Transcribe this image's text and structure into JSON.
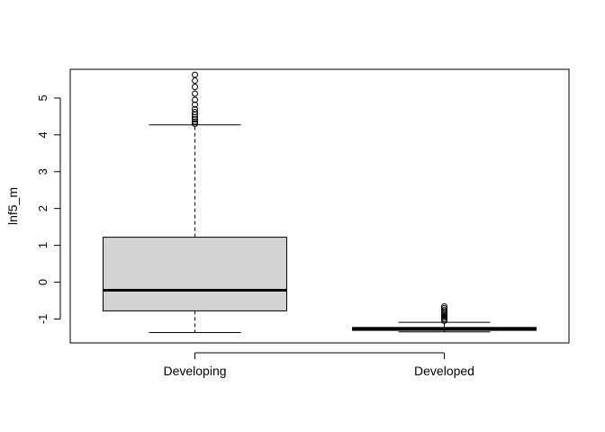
{
  "chart_data": {
    "type": "boxplot",
    "title": "",
    "xlabel": "",
    "ylabel": "lnf5_m",
    "ylim": [
      -1.65,
      5.78
    ],
    "y_ticks": [
      -1,
      0,
      1,
      2,
      3,
      4,
      5
    ],
    "y_tick_labels": [
      "-1",
      "0",
      "1",
      "2",
      "3",
      "4",
      "5"
    ],
    "grid": false,
    "legend": "none",
    "box_fill": "#d3d3d3",
    "categories": [
      "Developing",
      "Developed"
    ],
    "boxes": [
      {
        "category": "Developing",
        "whisker_low": -1.37,
        "q1": -0.78,
        "median": -0.22,
        "q3": 1.22,
        "whisker_high": 4.27,
        "outliers": [
          4.3,
          4.36,
          4.42,
          4.48,
          4.55,
          4.62,
          4.7,
          4.82,
          4.95,
          5.12,
          5.3,
          5.47,
          5.63
        ]
      },
      {
        "category": "Developed",
        "whisker_low": -1.35,
        "q1": -1.31,
        "median": -1.27,
        "q3": -1.23,
        "whisker_high": -1.09,
        "outliers": [
          -1.05,
          -1.01,
          -0.97,
          -0.93,
          -0.89,
          -0.85,
          -0.81,
          -0.76,
          -0.71,
          -0.66
        ]
      }
    ]
  }
}
